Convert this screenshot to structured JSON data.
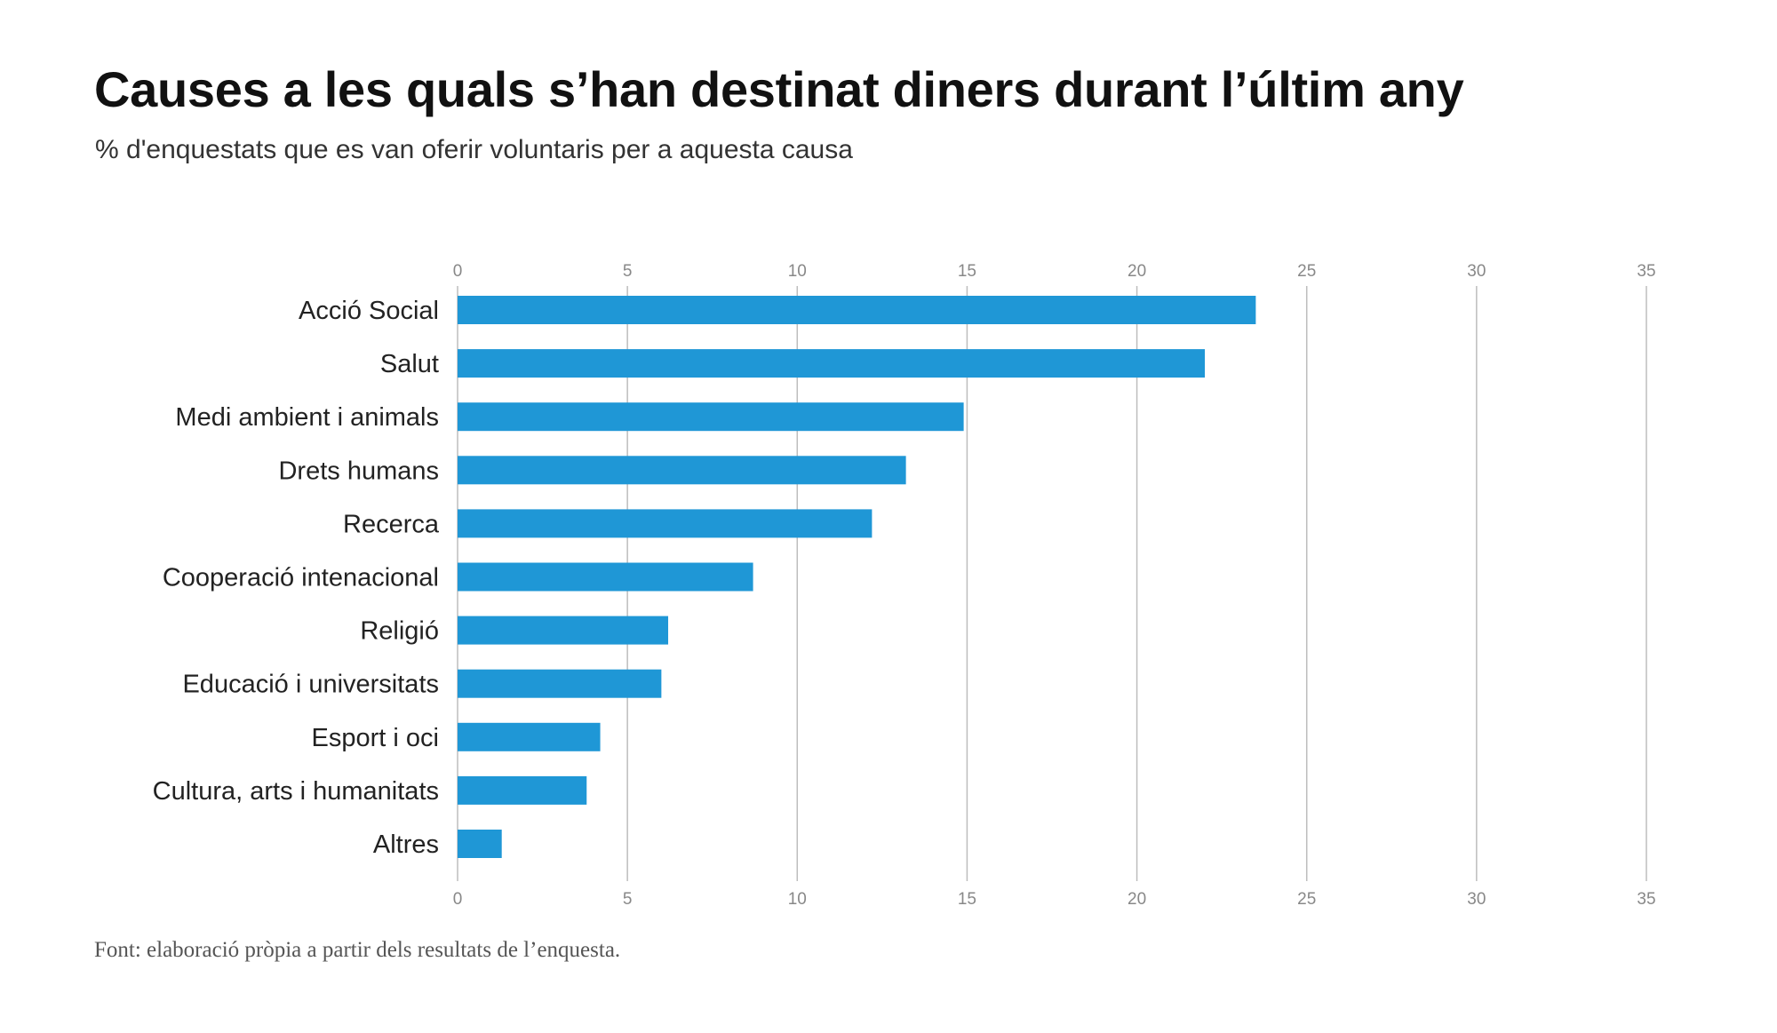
{
  "chart_data": {
    "type": "bar",
    "orientation": "horizontal",
    "title": "Causes a les quals s’han destinat diners durant l’últim any",
    "subtitle": "% d'enquestats que es van oferir voluntaris per a aquesta causa",
    "categories": [
      "Acció Social",
      "Salut",
      "Medi ambient i animals",
      "Drets humans",
      "Recerca",
      "Cooperació intenacional",
      "Religió",
      "Educació i universitats",
      "Esport i oci",
      "Cultura, arts i humanitats",
      "Altres"
    ],
    "values": [
      23.5,
      22.0,
      14.9,
      13.2,
      12.2,
      8.7,
      6.2,
      6.0,
      4.2,
      3.8,
      1.3
    ],
    "xlim": [
      0,
      35
    ],
    "xticks": [
      "0",
      "5",
      "10",
      "15",
      "20",
      "25",
      "30",
      "35"
    ],
    "xticks_position": "top and bottom",
    "grid": true,
    "bar_color": "#1f97d6",
    "source": "Font: elaboració pròpia a partir dels resultats de l’enquesta."
  }
}
